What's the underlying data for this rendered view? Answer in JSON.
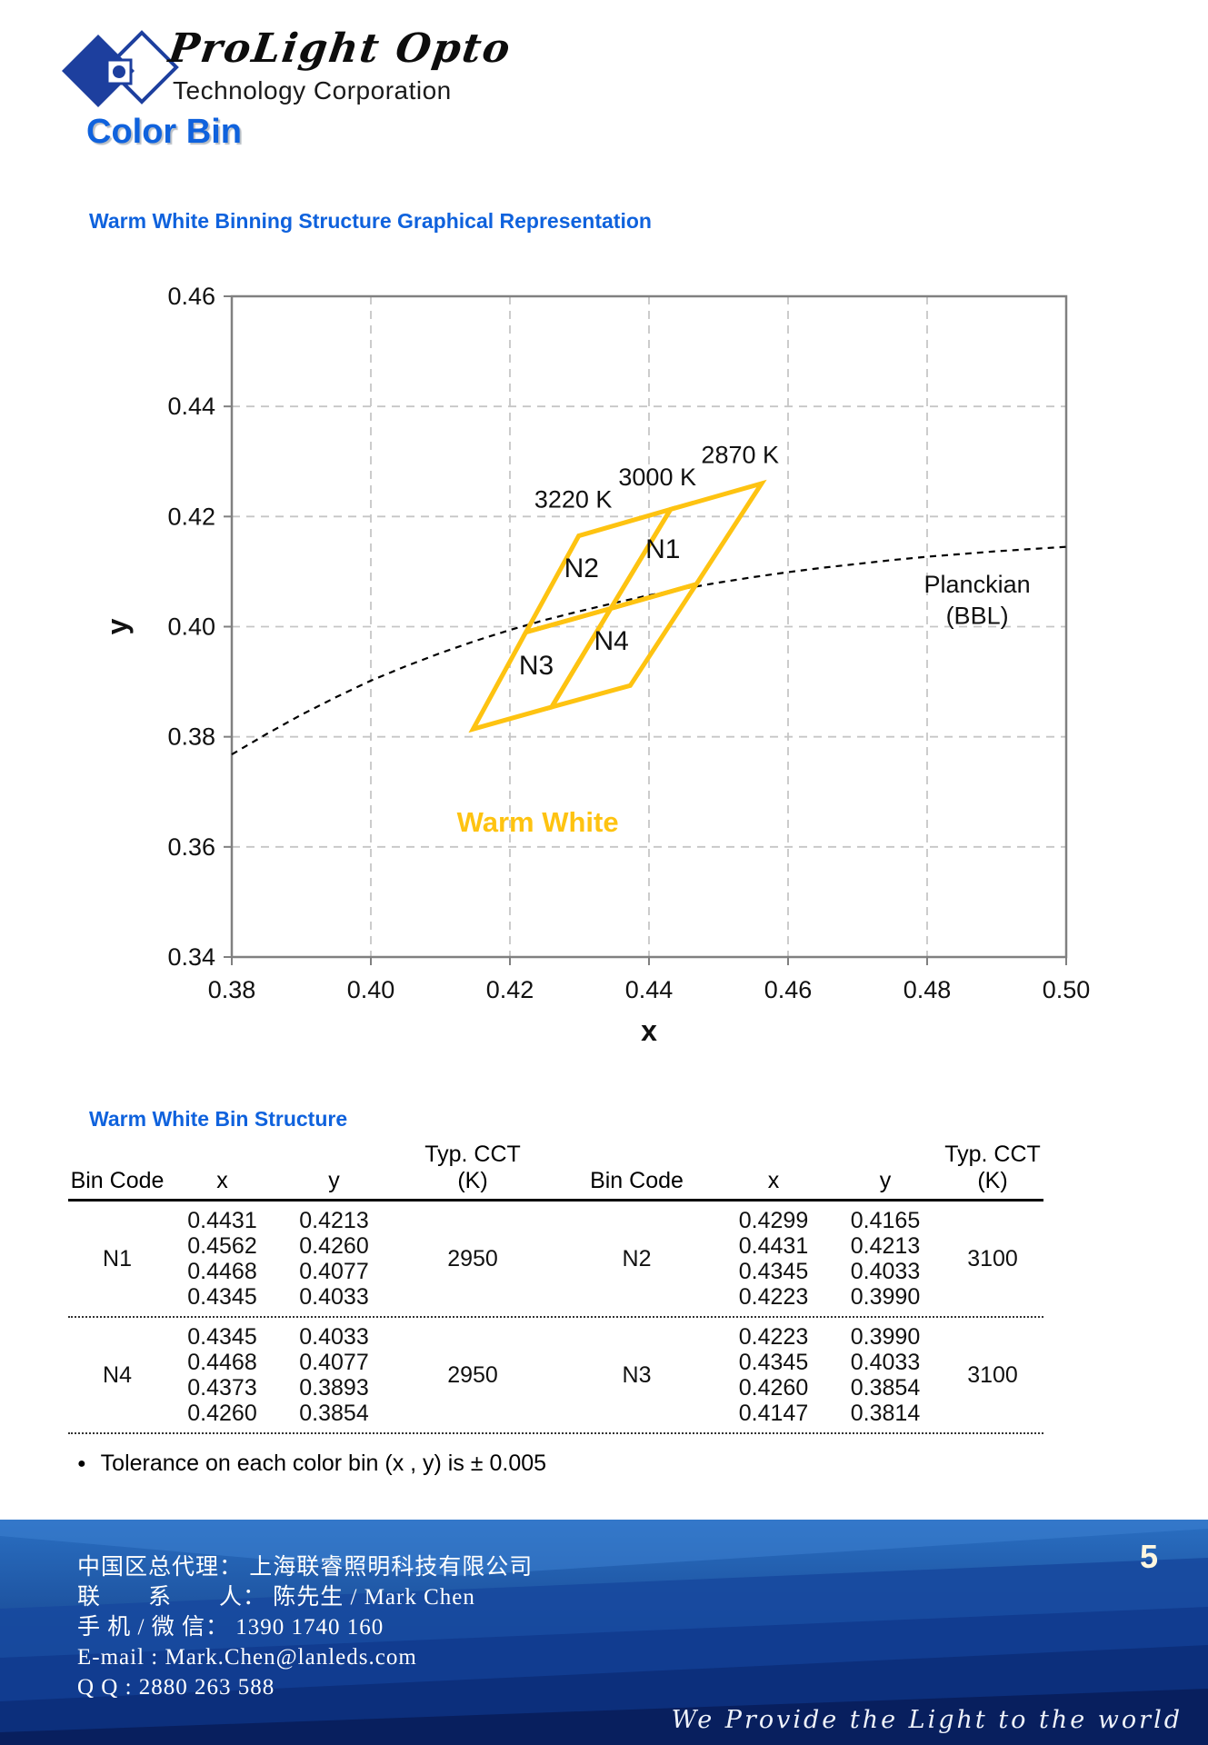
{
  "header": {
    "logo_script": "ProLight Opto",
    "logo_sub": "Technology Corporation",
    "title": "Color Bin",
    "subtitle": "Warm White Binning Structure Graphical Representation"
  },
  "colors": {
    "accent_blue": "#0f62dd",
    "bin_yellow": "#fec311",
    "logo_blue": "#1d3f9e",
    "frame_gray": "#808080",
    "grid_gray": "#c6c6c6",
    "footer_top": "#2a6fc2",
    "footer_bottom": "#0b2a6e",
    "page_number_color": "#fdf7e0"
  },
  "chart_data": {
    "type": "line",
    "title": "",
    "xlabel": "x",
    "ylabel": "y",
    "xlim": [
      0.38,
      0.5
    ],
    "ylim": [
      0.34,
      0.46
    ],
    "xticks": [
      0.38,
      0.4,
      0.42,
      0.44,
      0.46,
      0.48,
      0.5
    ],
    "yticks": [
      0.34,
      0.36,
      0.38,
      0.4,
      0.42,
      0.44,
      0.46
    ],
    "grid": true,
    "legend_position": "none",
    "bin_color": "#fec311",
    "planckian": {
      "name": "Planckian (BBL)",
      "style": "dashed",
      "points": [
        [
          0.38,
          0.3768
        ],
        [
          0.385,
          0.3805
        ],
        [
          0.39,
          0.384
        ],
        [
          0.395,
          0.3872
        ],
        [
          0.4,
          0.3902
        ],
        [
          0.405,
          0.3928
        ],
        [
          0.41,
          0.3952
        ],
        [
          0.415,
          0.3974
        ],
        [
          0.42,
          0.3994
        ],
        [
          0.425,
          0.4012
        ],
        [
          0.43,
          0.4028
        ],
        [
          0.435,
          0.4043
        ],
        [
          0.44,
          0.4057
        ],
        [
          0.445,
          0.4069
        ],
        [
          0.45,
          0.408
        ],
        [
          0.455,
          0.409
        ],
        [
          0.46,
          0.4099
        ],
        [
          0.465,
          0.4107
        ],
        [
          0.47,
          0.4114
        ],
        [
          0.475,
          0.4121
        ],
        [
          0.48,
          0.4127
        ],
        [
          0.485,
          0.4132
        ],
        [
          0.49,
          0.4137
        ],
        [
          0.495,
          0.4141
        ],
        [
          0.5,
          0.4145
        ]
      ]
    },
    "bins": [
      {
        "name": "N1",
        "vertices": [
          [
            0.4431,
            0.4213
          ],
          [
            0.4562,
            0.426
          ],
          [
            0.4468,
            0.4077
          ],
          [
            0.4345,
            0.4033
          ]
        ],
        "label_pos": [
          0.442,
          0.4125
        ]
      },
      {
        "name": "N2",
        "vertices": [
          [
            0.4299,
            0.4165
          ],
          [
            0.4431,
            0.4213
          ],
          [
            0.4345,
            0.4033
          ],
          [
            0.4223,
            0.399
          ]
        ],
        "label_pos": [
          0.4303,
          0.409
        ]
      },
      {
        "name": "N4",
        "vertices": [
          [
            0.4345,
            0.4033
          ],
          [
            0.4468,
            0.4077
          ],
          [
            0.4373,
            0.3893
          ],
          [
            0.426,
            0.3854
          ]
        ],
        "label_pos": [
          0.4346,
          0.3958
        ]
      },
      {
        "name": "N3",
        "vertices": [
          [
            0.4223,
            0.399
          ],
          [
            0.4345,
            0.4033
          ],
          [
            0.426,
            0.3854
          ],
          [
            0.4147,
            0.3814
          ]
        ],
        "label_pos": [
          0.4238,
          0.3913
        ]
      }
    ],
    "cct_labels": [
      {
        "text": "2870 K",
        "pos": [
          0.4531,
          0.4297
        ]
      },
      {
        "text": "3000 K",
        "pos": [
          0.4412,
          0.4257
        ]
      },
      {
        "text": "3220 K",
        "pos": [
          0.4291,
          0.4216
        ]
      }
    ],
    "annotations": [
      {
        "text": "Warm White",
        "pos": [
          0.424,
          0.3628
        ],
        "color": "#fec311",
        "bold": true
      },
      {
        "text": "Planckian",
        "pos": [
          0.4872,
          0.4062
        ]
      },
      {
        "text": "(BBL)",
        "pos": [
          0.4872,
          0.4005
        ]
      }
    ]
  },
  "table": {
    "heading": "Warm White Bin Structure",
    "header": {
      "bin_code": "Bin Code",
      "x": "x",
      "y": "y",
      "cct_line1": "Typ. CCT",
      "cct_line2": "(K)"
    },
    "rows": [
      {
        "left": {
          "bin": "N1",
          "x": [
            "0.4431",
            "0.4562",
            "0.4468",
            "0.4345"
          ],
          "y": [
            "0.4213",
            "0.4260",
            "0.4077",
            "0.4033"
          ],
          "cct": "2950"
        },
        "right": {
          "bin": "N2",
          "x": [
            "0.4299",
            "0.4431",
            "0.4345",
            "0.4223"
          ],
          "y": [
            "0.4165",
            "0.4213",
            "0.4033",
            "0.3990"
          ],
          "cct": "3100"
        }
      },
      {
        "left": {
          "bin": "N4",
          "x": [
            "0.4345",
            "0.4468",
            "0.4373",
            "0.4260"
          ],
          "y": [
            "0.4033",
            "0.4077",
            "0.3893",
            "0.3854"
          ],
          "cct": "2950"
        },
        "right": {
          "bin": "N3",
          "x": [
            "0.4223",
            "0.4345",
            "0.4260",
            "0.4147"
          ],
          "y": [
            "0.3990",
            "0.4033",
            "0.3854",
            "0.3814"
          ],
          "cct": "3100"
        }
      }
    ]
  },
  "note": {
    "bullet": "●",
    "text": "Tolerance on each color bin (x , y) is ± 0.005"
  },
  "footer": {
    "page_number": "5",
    "lines": [
      "中国区总代理：  上海联睿照明科技有限公司",
      "联　　系　　人：  陈先生 / Mark Chen",
      "手 机 / 微 信：  1390 1740 160",
      "E-mail :  Mark.Chen@lanleds.com",
      "Q Q : 2880 263 588"
    ],
    "motto": "We Provide the Light to the world"
  }
}
